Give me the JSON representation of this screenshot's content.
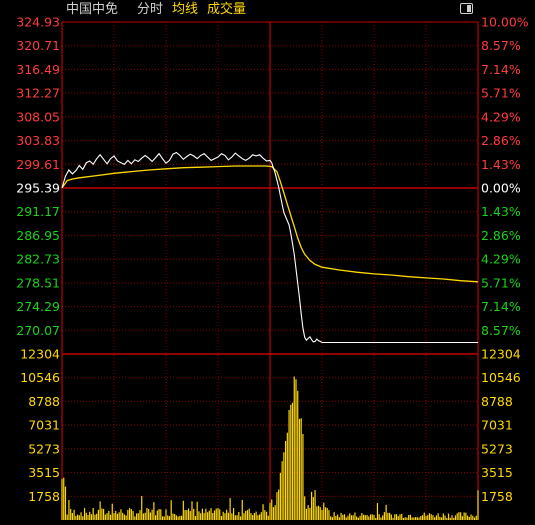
{
  "header": {
    "stock_name": "中国中免",
    "mode": "分时",
    "avg_line": "均线",
    "volume": "成交量"
  },
  "colors": {
    "background": "#000000",
    "grid": "#8a0000",
    "grid_mid": "#c00000",
    "price_up": "#ff3b3b",
    "price_down": "#19d219",
    "price_flat": "#ffffff",
    "volume_axis": "#ffd900",
    "price_line": "#ffffff",
    "avg_line": "#ffd900",
    "volume_bars": "#ffd900"
  },
  "chart_data": {
    "type": "line",
    "price_axis": {
      "range": [
        265.85,
        324.93
      ],
      "prev_close": 295.39,
      "ticks": [
        {
          "value": "324.93",
          "pct": "10.00%"
        },
        {
          "value": "320.71",
          "pct": "8.57%"
        },
        {
          "value": "316.49",
          "pct": "7.14%"
        },
        {
          "value": "312.27",
          "pct": "5.71%"
        },
        {
          "value": "308.05",
          "pct": "4.29%"
        },
        {
          "value": "303.83",
          "pct": "2.86%"
        },
        {
          "value": "299.61",
          "pct": "1.43%"
        },
        {
          "value": "295.39",
          "pct": "0.00%"
        },
        {
          "value": "291.17",
          "pct": "1.43%"
        },
        {
          "value": "286.95",
          "pct": "2.86%"
        },
        {
          "value": "282.73",
          "pct": "4.29%"
        },
        {
          "value": "278.51",
          "pct": "5.71%"
        },
        {
          "value": "274.29",
          "pct": "7.14%"
        },
        {
          "value": "270.07",
          "pct": "8.57%"
        }
      ]
    },
    "volume_axis": {
      "range": [
        0,
        12304
      ],
      "ticks": [
        "12304",
        "10546",
        "8788",
        "7031",
        "5273",
        "3515",
        "1758"
      ]
    },
    "minutes": 241,
    "series": [
      {
        "kind": "price",
        "points": [
          [
            0,
            295.4
          ],
          [
            2,
            297.5
          ],
          [
            4,
            298.6
          ],
          [
            6,
            297.9
          ],
          [
            8,
            298.5
          ],
          [
            10,
            299.4
          ],
          [
            12,
            298.7
          ],
          [
            14,
            299.9
          ],
          [
            16,
            300.2
          ],
          [
            18,
            299.6
          ],
          [
            20,
            300.6
          ],
          [
            22,
            301.3
          ],
          [
            24,
            300.5
          ],
          [
            26,
            299.7
          ],
          [
            28,
            300.6
          ],
          [
            30,
            301.1
          ],
          [
            32,
            300.2
          ],
          [
            34,
            299.9
          ],
          [
            36,
            299.6
          ],
          [
            38,
            300.3
          ],
          [
            40,
            299.7
          ],
          [
            42,
            300.4
          ],
          [
            44,
            300.1
          ],
          [
            46,
            300.7
          ],
          [
            48,
            301.2
          ],
          [
            50,
            300.7
          ],
          [
            52,
            300.1
          ],
          [
            54,
            300.8
          ],
          [
            56,
            301.5
          ],
          [
            58,
            300.6
          ],
          [
            60,
            299.8
          ],
          [
            62,
            300.3
          ],
          [
            64,
            301.4
          ],
          [
            66,
            301.7
          ],
          [
            68,
            301.2
          ],
          [
            70,
            300.5
          ],
          [
            72,
            301.0
          ],
          [
            74,
            301.4
          ],
          [
            76,
            301.1
          ],
          [
            78,
            300.6
          ],
          [
            80,
            301.2
          ],
          [
            82,
            301.5
          ],
          [
            84,
            300.9
          ],
          [
            86,
            300.3
          ],
          [
            88,
            300.6
          ],
          [
            90,
            300.9
          ],
          [
            92,
            301.5
          ],
          [
            94,
            301.2
          ],
          [
            96,
            300.4
          ],
          [
            98,
            300.9
          ],
          [
            100,
            301.6
          ],
          [
            102,
            301.1
          ],
          [
            104,
            300.6
          ],
          [
            106,
            300.3
          ],
          [
            108,
            300.7
          ],
          [
            110,
            301.3
          ],
          [
            112,
            301.1
          ],
          [
            114,
            301.3
          ],
          [
            116,
            300.7
          ],
          [
            118,
            300.2
          ],
          [
            120,
            300.3
          ],
          [
            121,
            299.9
          ],
          [
            123,
            298.0
          ],
          [
            125,
            295.5
          ],
          [
            127,
            292.5
          ],
          [
            128,
            291.0
          ],
          [
            129,
            290.3
          ],
          [
            131,
            288.8
          ],
          [
            132,
            287.3
          ],
          [
            133,
            285.5
          ],
          [
            134,
            283.5
          ],
          [
            135,
            281.0
          ],
          [
            136,
            278.5
          ],
          [
            137,
            275.8
          ],
          [
            138,
            273.0
          ],
          [
            139,
            270.5
          ],
          [
            140,
            268.8
          ],
          [
            141,
            268.3
          ],
          [
            142,
            268.6
          ],
          [
            143,
            268.9
          ],
          [
            144,
            268.4
          ],
          [
            145,
            268.0
          ],
          [
            146,
            268.1
          ],
          [
            147,
            268.5
          ],
          [
            148,
            268.2
          ],
          [
            149,
            268.1
          ],
          [
            150,
            267.9
          ],
          [
            155,
            267.9
          ],
          [
            160,
            267.9
          ],
          [
            170,
            267.9
          ],
          [
            180,
            267.9
          ],
          [
            200,
            267.9
          ],
          [
            220,
            267.9
          ],
          [
            240,
            267.9
          ]
        ]
      },
      {
        "kind": "avg",
        "points": [
          [
            0,
            295.4
          ],
          [
            3,
            296.7
          ],
          [
            6,
            297.0
          ],
          [
            10,
            297.2
          ],
          [
            20,
            297.6
          ],
          [
            30,
            298.0
          ],
          [
            40,
            298.3
          ],
          [
            50,
            298.6
          ],
          [
            60,
            298.8
          ],
          [
            70,
            299.0
          ],
          [
            80,
            299.1
          ],
          [
            90,
            299.2
          ],
          [
            100,
            299.3
          ],
          [
            110,
            299.3
          ],
          [
            118,
            299.3
          ],
          [
            121,
            299.2
          ],
          [
            124,
            298.3
          ],
          [
            126,
            296.5
          ],
          [
            128,
            294.5
          ],
          [
            130,
            292.5
          ],
          [
            132,
            290.5
          ],
          [
            134,
            288.5
          ],
          [
            136,
            286.5
          ],
          [
            138,
            284.8
          ],
          [
            140,
            283.6
          ],
          [
            143,
            282.5
          ],
          [
            146,
            281.8
          ],
          [
            150,
            281.3
          ],
          [
            160,
            280.8
          ],
          [
            170,
            280.4
          ],
          [
            180,
            280.1
          ],
          [
            190,
            279.9
          ],
          [
            200,
            279.6
          ],
          [
            210,
            279.4
          ],
          [
            220,
            279.2
          ],
          [
            230,
            278.9
          ],
          [
            240,
            278.7
          ]
        ]
      }
    ],
    "volume_seed": 7
  }
}
